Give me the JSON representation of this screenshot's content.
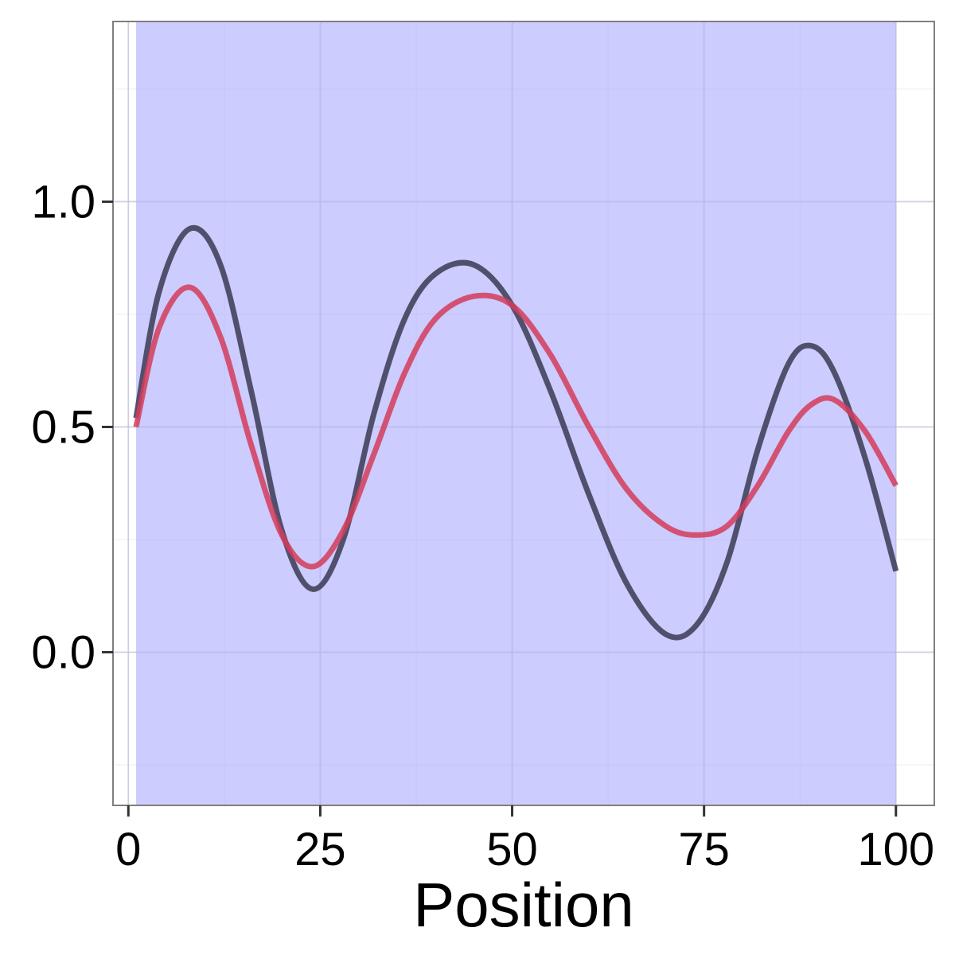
{
  "chart_data": {
    "type": "line",
    "title": "",
    "xlabel": "Position",
    "ylabel": "",
    "xlim": [
      -2,
      105
    ],
    "ylim": [
      -0.34,
      1.4
    ],
    "grid": true,
    "legend": "none",
    "x_ticks": [
      0,
      25,
      50,
      75,
      100
    ],
    "x_tick_labels": [
      "0",
      "25",
      "50",
      "75",
      "100"
    ],
    "y_ticks": [
      0.0,
      0.5,
      1.0
    ],
    "y_tick_labels": [
      "0.0",
      "0.5",
      "1.0"
    ],
    "shaded_region": {
      "x_start": 1,
      "x_end": 100,
      "color": "#9999ff"
    },
    "x": [
      1,
      4,
      8,
      12,
      16,
      20,
      24,
      28,
      32,
      36,
      40,
      45,
      50,
      55,
      60,
      65,
      70,
      74,
      78,
      82,
      86,
      89,
      92,
      96,
      100
    ],
    "series": [
      {
        "color": "#3a3a52",
        "values": [
          0.52,
          0.8,
          0.94,
          0.86,
          0.58,
          0.27,
          0.14,
          0.25,
          0.53,
          0.74,
          0.84,
          0.86,
          0.77,
          0.58,
          0.35,
          0.15,
          0.04,
          0.06,
          0.2,
          0.45,
          0.64,
          0.68,
          0.62,
          0.43,
          0.18
        ]
      },
      {
        "color": "#d43c5a",
        "values": [
          0.5,
          0.72,
          0.81,
          0.7,
          0.46,
          0.26,
          0.19,
          0.27,
          0.44,
          0.62,
          0.74,
          0.79,
          0.77,
          0.66,
          0.5,
          0.36,
          0.28,
          0.26,
          0.28,
          0.37,
          0.49,
          0.55,
          0.56,
          0.49,
          0.37
        ]
      }
    ]
  }
}
